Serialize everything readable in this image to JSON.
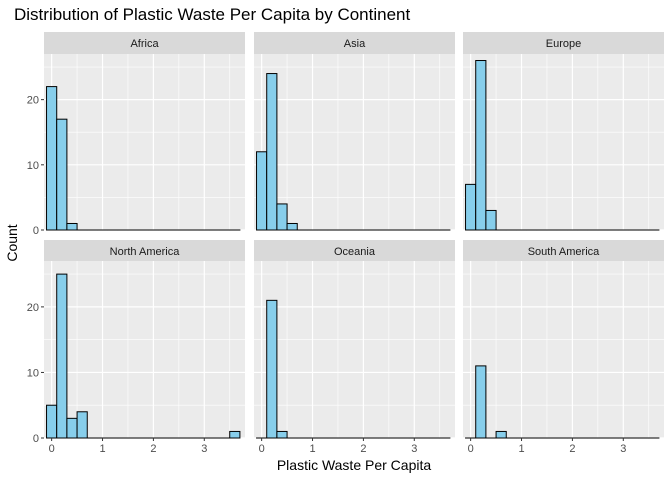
{
  "chart_data": {
    "type": "bar",
    "subtype": "faceted-histogram",
    "title": "Distribution of Plastic Waste Per Capita by Continent",
    "xlabel": "Plastic Waste Per Capita",
    "ylabel": "Count",
    "xlim": [
      -0.15,
      3.8
    ],
    "ylim": [
      0,
      27
    ],
    "x_ticks": [
      0,
      1,
      2,
      3
    ],
    "y_ticks": [
      0,
      10,
      20
    ],
    "grid": true,
    "bin_width": 0.2,
    "bin_centers": [
      0.0,
      0.2,
      0.4,
      0.6,
      0.8,
      1.0,
      1.2,
      1.4,
      1.6,
      1.8,
      2.0,
      2.2,
      2.4,
      2.6,
      2.8,
      3.0,
      3.2,
      3.4,
      3.6
    ],
    "colors": {
      "fill": "#87CEEB",
      "stroke": "#000000",
      "panel": "#EBEBEB",
      "strip": "#D9D9D9",
      "grid": "#FFFFFF"
    },
    "facets": [
      {
        "name": "Africa",
        "counts": [
          22,
          17,
          1,
          0,
          0,
          0,
          0,
          0,
          0,
          0,
          0,
          0,
          0,
          0,
          0,
          0,
          0,
          0,
          0
        ]
      },
      {
        "name": "Asia",
        "counts": [
          12,
          24,
          4,
          1,
          0,
          0,
          0,
          0,
          0,
          0,
          0,
          0,
          0,
          0,
          0,
          0,
          0,
          0,
          0
        ]
      },
      {
        "name": "Europe",
        "counts": [
          7,
          26,
          3,
          0,
          0,
          0,
          0,
          0,
          0,
          0,
          0,
          0,
          0,
          0,
          0,
          0,
          0,
          0,
          0
        ]
      },
      {
        "name": "North America",
        "counts": [
          5,
          25,
          3,
          4,
          0,
          0,
          0,
          0,
          0,
          0,
          0,
          0,
          0,
          0,
          0,
          0,
          0,
          0,
          1
        ]
      },
      {
        "name": "Oceania",
        "counts": [
          0,
          21,
          1,
          0,
          0,
          0,
          0,
          0,
          0,
          0,
          0,
          0,
          0,
          0,
          0,
          0,
          0,
          0,
          0
        ]
      },
      {
        "name": "South America",
        "counts": [
          0,
          11,
          0,
          1,
          0,
          0,
          0,
          0,
          0,
          0,
          0,
          0,
          0,
          0,
          0,
          0,
          0,
          0,
          0
        ]
      }
    ]
  }
}
